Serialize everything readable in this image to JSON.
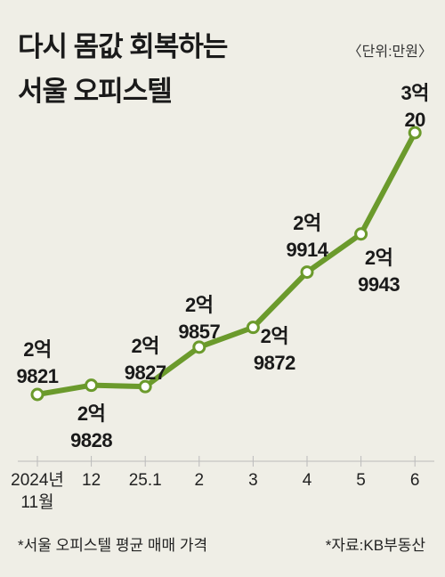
{
  "chart_data": {
    "type": "line",
    "title": "다시 몸값 회복하는\n서울 오피스텔",
    "unit": "〈단위:만원〉",
    "categories": [
      "2024년\n11월",
      "12",
      "25.1",
      "2",
      "3",
      "4",
      "5",
      "6"
    ],
    "series": [
      {
        "name": "서울 오피스텔 평균 매매 가격",
        "color": "#6b9a2c",
        "values": [
          29821,
          29828,
          29827,
          29857,
          29872,
          29914,
          29943,
          30020
        ],
        "value_labels": [
          "2억\n9821",
          "2억\n9828",
          "2억\n9827",
          "2억\n9857",
          "2억\n9872",
          "2억\n9914",
          "2억\n9943",
          "3억\n20"
        ]
      }
    ],
    "notes": [
      "*서울 오피스텔 평균 매매 가격",
      "*자료:KB부동산"
    ]
  }
}
